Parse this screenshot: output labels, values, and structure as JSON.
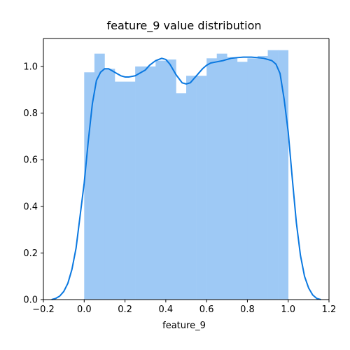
{
  "chart_data": {
    "type": "bar",
    "title": "feature_9 value distribution",
    "xlabel": "feature_9",
    "ylabel": "",
    "xlim": [
      -0.2,
      1.2
    ],
    "ylim": [
      0,
      1.12
    ],
    "grid": false,
    "x_ticks": [
      -0.2,
      0.0,
      0.2,
      0.4,
      0.6,
      0.8,
      1.0,
      1.2
    ],
    "x_tick_labels": [
      "−0.2",
      "0.0",
      "0.2",
      "0.4",
      "0.6",
      "0.8",
      "1.0",
      "1.2"
    ],
    "y_ticks": [
      0.0,
      0.2,
      0.4,
      0.6,
      0.8,
      1.0
    ],
    "y_tick_labels": [
      "0.0",
      "0.2",
      "0.4",
      "0.6",
      "0.8",
      "1.0"
    ],
    "histogram": {
      "bin_edges": [
        0.0,
        0.05,
        0.1,
        0.15,
        0.2,
        0.25,
        0.3,
        0.35,
        0.4,
        0.45,
        0.5,
        0.55,
        0.6,
        0.65,
        0.7,
        0.75,
        0.8,
        0.85,
        0.9,
        0.95,
        1.0
      ],
      "values": [
        0.975,
        1.055,
        0.99,
        0.935,
        0.935,
        1.0,
        1.0,
        1.025,
        1.03,
        0.885,
        0.96,
        0.96,
        1.035,
        1.055,
        1.04,
        1.02,
        1.035,
        1.045,
        1.07,
        1.07
      ],
      "color": "#9ec9f5"
    },
    "kde": {
      "x": [
        -0.16,
        -0.14,
        -0.12,
        -0.1,
        -0.08,
        -0.06,
        -0.04,
        -0.02,
        0.0,
        0.02,
        0.04,
        0.06,
        0.08,
        0.1,
        0.12,
        0.14,
        0.16,
        0.18,
        0.2,
        0.22,
        0.25,
        0.28,
        0.3,
        0.32,
        0.35,
        0.38,
        0.4,
        0.42,
        0.45,
        0.48,
        0.5,
        0.52,
        0.55,
        0.58,
        0.6,
        0.62,
        0.65,
        0.68,
        0.7,
        0.72,
        0.75,
        0.78,
        0.8,
        0.82,
        0.85,
        0.88,
        0.9,
        0.92,
        0.94,
        0.96,
        0.98,
        1.0,
        1.02,
        1.04,
        1.06,
        1.08,
        1.1,
        1.12,
        1.14,
        1.16
      ],
      "y": [
        0.0,
        0.005,
        0.015,
        0.035,
        0.07,
        0.13,
        0.22,
        0.36,
        0.5,
        0.68,
        0.84,
        0.94,
        0.975,
        0.99,
        0.99,
        0.98,
        0.97,
        0.96,
        0.955,
        0.955,
        0.96,
        0.975,
        0.985,
        1.005,
        1.025,
        1.035,
        1.03,
        1.01,
        0.965,
        0.93,
        0.925,
        0.93,
        0.96,
        0.99,
        1.005,
        1.015,
        1.02,
        1.025,
        1.03,
        1.035,
        1.038,
        1.04,
        1.04,
        1.04,
        1.038,
        1.035,
        1.03,
        1.025,
        1.01,
        0.97,
        0.86,
        0.72,
        0.52,
        0.33,
        0.19,
        0.1,
        0.05,
        0.02,
        0.005,
        0.0
      ],
      "color": "#0a78e0"
    }
  }
}
